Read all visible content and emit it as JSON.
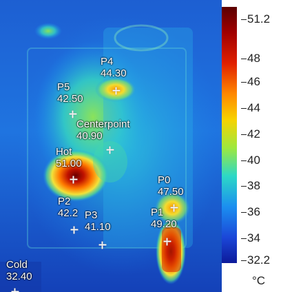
{
  "points": [
    {
      "id": "p4",
      "name": "P4",
      "value": "44.30"
    },
    {
      "id": "p5",
      "name": "P5",
      "value": "42.50"
    },
    {
      "id": "center",
      "name": "Centerpoint",
      "value": "40.90"
    },
    {
      "id": "hot",
      "name": "Hot",
      "value": "51.00"
    },
    {
      "id": "p0",
      "name": "P0",
      "value": "47.50"
    },
    {
      "id": "p1",
      "name": "P1",
      "value": "49.20"
    },
    {
      "id": "p2",
      "name": "P2",
      "value": "42.2"
    },
    {
      "id": "p3",
      "name": "P3",
      "value": "41.10"
    },
    {
      "id": "cold",
      "name": "Cold",
      "value": "32.40"
    }
  ],
  "scale": {
    "max": "51.2",
    "min": "32.2",
    "ticks": [
      "48",
      "46",
      "44",
      "42",
      "40",
      "38",
      "36",
      "34"
    ],
    "unit": "°C"
  },
  "colors": {
    "hot": "#8b0000",
    "warm": "#ff8800",
    "mid": "#f7d200",
    "cool": "#2dd8c6",
    "cold": "#0d1a9a"
  }
}
